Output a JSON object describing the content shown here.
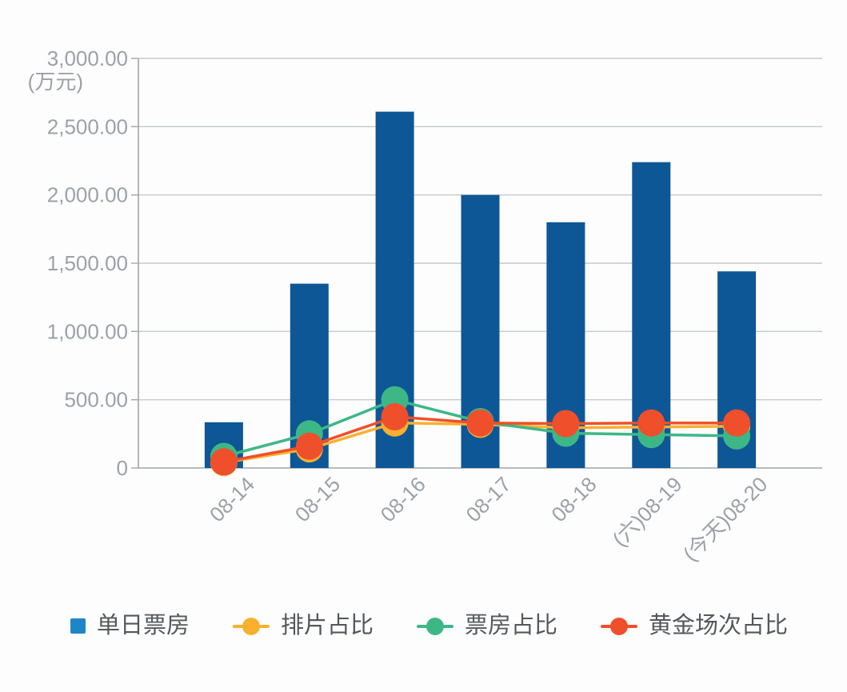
{
  "chart_data": {
    "type": "bar",
    "title": "",
    "categories": [
      "08-14",
      "08-15",
      "08-16",
      "08-17",
      "08-18",
      "(六)08-19",
      "(今天)08-20"
    ],
    "y_unit": "(万元)",
    "ylim": [
      0,
      3000
    ],
    "y_ticks": [
      {
        "label": "3,000.00",
        "value": 3000
      },
      {
        "label": "2,500.00",
        "value": 2500
      },
      {
        "label": "2,000.00",
        "value": 2000
      },
      {
        "label": "1,500.00",
        "value": 1500
      },
      {
        "label": "1,000.00",
        "value": 1000
      },
      {
        "label": "500.00",
        "value": 500
      },
      {
        "label": "0",
        "value": 0
      }
    ],
    "grid": true,
    "legend_position": "bottom",
    "x_label_rotation_deg": 45,
    "series": [
      {
        "name": "单日票房",
        "type": "bar",
        "color": "#0d5796",
        "legend_color": "#1e86c7",
        "values": [
          335,
          1350,
          2610,
          2000,
          1800,
          2240,
          1440
        ]
      },
      {
        "name": "排片占比",
        "type": "line",
        "color": "#f9b02f",
        "values": [
          40,
          140,
          330,
          320,
          295,
          300,
          305
        ]
      },
      {
        "name": "票房占比",
        "type": "line",
        "color": "#3eb787",
        "values": [
          85,
          250,
          500,
          340,
          255,
          245,
          235
        ]
      },
      {
        "name": "黄金场次占比",
        "type": "line",
        "color": "#ef4f2b",
        "values": [
          45,
          160,
          375,
          330,
          325,
          330,
          330
        ]
      }
    ]
  }
}
